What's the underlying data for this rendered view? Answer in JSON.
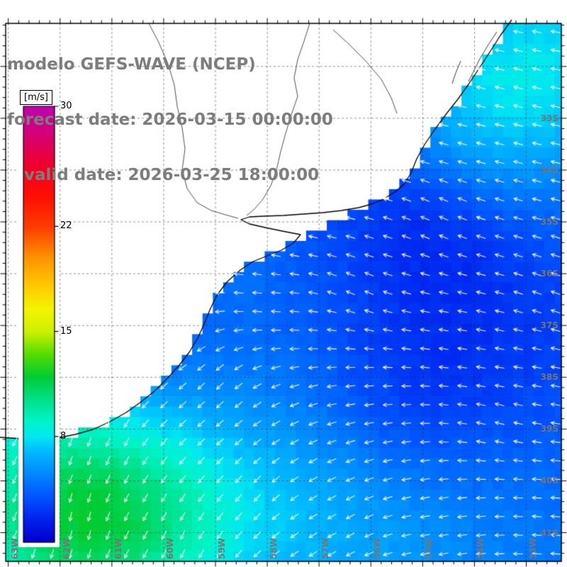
{
  "chart_data": {
    "type": "heatmap",
    "title_lines": [
      "modelo GEFS-WAVE (NCEP)",
      "forecast date: 2026-03-15 00:00:00",
      "   valid date: 2026-03-25 18:00:00"
    ],
    "colorbar": {
      "unit_label": "[m/s]",
      "min": 1,
      "max": 30,
      "ticks": [
        {
          "value": 30,
          "label": "30"
        },
        {
          "value": 22,
          "label": "22"
        },
        {
          "value": 15,
          "label": "15"
        },
        {
          "value": 8,
          "label": "8"
        }
      ],
      "color_stops": [
        [
          1,
          "#0000cc"
        ],
        [
          2.5,
          "#0022ee"
        ],
        [
          4,
          "#0055ff"
        ],
        [
          5.5,
          "#0088ff"
        ],
        [
          7,
          "#00baff"
        ],
        [
          8,
          "#00e8f0"
        ],
        [
          9,
          "#00f4c8"
        ],
        [
          10.5,
          "#00e087"
        ],
        [
          12,
          "#00cc33"
        ],
        [
          13.5,
          "#55dd00"
        ],
        [
          15,
          "#ccf000"
        ],
        [
          16.5,
          "#f4f400"
        ],
        [
          18,
          "#ffcc00"
        ],
        [
          20,
          "#ff9000"
        ],
        [
          22,
          "#ff3c00"
        ],
        [
          24,
          "#ff0f00"
        ],
        [
          26,
          "#f00028"
        ],
        [
          28,
          "#d80070"
        ],
        [
          30,
          "#c000b0"
        ]
      ]
    },
    "axes": {
      "lat_labels": [
        "33S",
        "34S",
        "35S",
        "36S",
        "37S",
        "38S",
        "39S",
        "40S",
        "41S"
      ],
      "lon_labels": [
        "63W",
        "62W",
        "61W",
        "60W",
        "59W",
        "58W",
        "57W",
        "56W",
        "55W",
        "54W",
        "53W"
      ],
      "grid": "dashed graticule, 1 degree spacing"
    },
    "field_model": {
      "base": 3.7,
      "jitter": 0.45,
      "blobs": [
        [
          80,
          770,
          5.5,
          130
        ],
        [
          210,
          720,
          2.6,
          100
        ],
        [
          55,
          645,
          2.2,
          90
        ],
        [
          360,
          700,
          1.8,
          150
        ],
        [
          500,
          770,
          1.5,
          150
        ],
        [
          790,
          55,
          3.4,
          130
        ],
        [
          672,
          175,
          2.4,
          100
        ],
        [
          615,
          300,
          -1.5,
          85
        ],
        [
          565,
          575,
          -1.2,
          95
        ],
        [
          705,
          480,
          -0.7,
          110
        ],
        [
          320,
          360,
          0.8,
          80
        ],
        [
          790,
          790,
          1.0,
          180
        ]
      ]
    },
    "wind": {
      "arrow_color": "#ffffff",
      "controls": [
        [
          100,
          740,
          100
        ],
        [
          250,
          760,
          115
        ],
        [
          120,
          640,
          108
        ],
        [
          330,
          700,
          130
        ],
        [
          480,
          740,
          150
        ],
        [
          300,
          550,
          135
        ],
        [
          380,
          430,
          185
        ],
        [
          350,
          330,
          200
        ],
        [
          500,
          400,
          205
        ],
        [
          620,
          300,
          205
        ],
        [
          700,
          150,
          195
        ],
        [
          600,
          80,
          190
        ],
        [
          770,
          400,
          200
        ],
        [
          700,
          600,
          195
        ],
        [
          600,
          740,
          170
        ],
        [
          780,
          760,
          185
        ]
      ]
    },
    "geo": {
      "land_color": "#ffffff",
      "coast_upper": [
        [
          722,
          28
        ],
        [
          706,
          50
        ],
        [
          692,
          72
        ],
        [
          677,
          95
        ],
        [
          661,
          119
        ],
        [
          646,
          140
        ],
        [
          631,
          159
        ],
        [
          614,
          182
        ],
        [
          599,
          204
        ],
        [
          588,
          224
        ],
        [
          580,
          244
        ],
        [
          570,
          260
        ],
        [
          557,
          271
        ],
        [
          541,
          281
        ],
        [
          524,
          288
        ]
      ],
      "estuary": [
        [
          506,
          293
        ],
        [
          482,
          297
        ],
        [
          456,
          300
        ],
        [
          428,
          302
        ],
        [
          400,
          304
        ],
        [
          372,
          305
        ],
        [
          352,
          306
        ],
        [
          340,
          310
        ],
        [
          352,
          316
        ],
        [
          374,
          321
        ],
        [
          398,
          326
        ],
        [
          424,
          331
        ]
      ],
      "coast_lower": [
        [
          414,
          343
        ],
        [
          397,
          353
        ],
        [
          377,
          361
        ],
        [
          357,
          369
        ],
        [
          339,
          381
        ],
        [
          321,
          397
        ],
        [
          307,
          415
        ],
        [
          297,
          435
        ],
        [
          289,
          455
        ],
        [
          279,
          477
        ],
        [
          267,
          497
        ],
        [
          253,
          515
        ],
        [
          237,
          533
        ],
        [
          219,
          551
        ],
        [
          199,
          567
        ],
        [
          178,
          582
        ],
        [
          155,
          595
        ],
        [
          131,
          606
        ],
        [
          106,
          613
        ],
        [
          81,
          618
        ],
        [
          56,
          621
        ],
        [
          29,
          619
        ],
        [
          0,
          617
        ]
      ],
      "rivers": [
        [
          [
            437,
            33
          ],
          [
            429,
            58
          ],
          [
            420,
            84
          ],
          [
            415,
            110
          ],
          [
            420,
            136
          ],
          [
            411,
            162
          ],
          [
            403,
            188
          ],
          [
            396,
            214
          ],
          [
            390,
            240
          ],
          [
            382,
            262
          ],
          [
            371,
            281
          ],
          [
            359,
            295
          ],
          [
            348,
            304
          ]
        ],
        [
          [
            210,
            33
          ],
          [
            224,
            60
          ],
          [
            237,
            90
          ],
          [
            246,
            120
          ],
          [
            250,
            150
          ],
          [
            257,
            180
          ],
          [
            261,
            210
          ],
          [
            257,
            240
          ],
          [
            264,
            266
          ],
          [
            278,
            286
          ],
          [
            298,
            297
          ],
          [
            318,
            303
          ],
          [
            336,
            308
          ]
        ],
        [
          [
            470,
            42
          ],
          [
            492,
            62
          ],
          [
            516,
            86
          ],
          [
            538,
            112
          ],
          [
            552,
            138
          ],
          [
            560,
            160
          ]
        ]
      ],
      "lagoons": [
        [
          [
            701,
            45
          ],
          [
            689,
            63
          ],
          [
            677,
            83
          ],
          [
            668,
            101
          ],
          [
            661,
            115
          ]
        ],
        [
          [
            650,
            86
          ],
          [
            643,
            103
          ],
          [
            638,
            118
          ]
        ]
      ]
    },
    "colors": {
      "title": "#7d7d7d",
      "frame": "#000000",
      "graticule": "#2a2a2a",
      "axis_labels": "#757575"
    }
  }
}
